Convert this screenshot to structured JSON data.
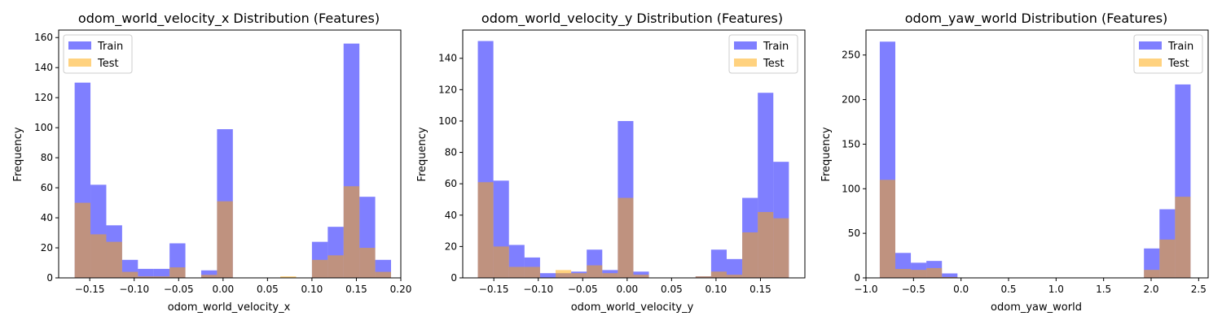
{
  "colors": {
    "train": "#0000ff",
    "test": "#ffa500",
    "alpha": 0.5
  },
  "legend": {
    "train_label": "Train",
    "test_label": "Test"
  },
  "chart_data": [
    {
      "type": "bar",
      "title": "odom_world_velocity_x Distribution (Features)",
      "xlabel": "odom_world_velocity_x",
      "ylabel": "Frequency",
      "xlim": [
        -0.185,
        0.2
      ],
      "ylim": [
        0,
        165
      ],
      "xticks": [
        -0.15,
        -0.1,
        -0.05,
        0.0,
        0.05,
        0.1,
        0.15,
        0.2
      ],
      "xtick_labels": [
        "−0.15",
        "−0.10",
        "−0.05",
        "0.00",
        "0.05",
        "0.10",
        "0.15",
        "0.20"
      ],
      "yticks": [
        0,
        20,
        40,
        60,
        80,
        100,
        120,
        140,
        160
      ],
      "legend_position": "top-left",
      "bin_edges": [
        -0.167,
        -0.1492,
        -0.1314,
        -0.1136,
        -0.0958,
        -0.078,
        -0.0602,
        -0.0424,
        -0.0246,
        -0.0068,
        0.011,
        0.0288,
        0.0466,
        0.0644,
        0.0822,
        0.1,
        0.1178,
        0.1356,
        0.1534,
        0.1712,
        0.189
      ],
      "series": [
        {
          "name": "Train",
          "values": [
            130,
            62,
            35,
            12,
            6,
            6,
            23,
            0,
            5,
            99,
            0,
            0,
            0,
            0,
            0,
            24,
            34,
            156,
            54,
            12
          ]
        },
        {
          "name": "Test",
          "values": [
            50,
            29,
            24,
            4,
            1,
            1,
            7,
            0,
            2,
            51,
            0,
            0,
            0,
            1,
            0,
            12,
            15,
            61,
            20,
            4
          ]
        }
      ]
    },
    {
      "type": "bar",
      "title": "odom_world_velocity_y Distribution (Features)",
      "xlabel": "odom_world_velocity_y",
      "ylabel": "Frequency",
      "xlim": [
        -0.185,
        0.2
      ],
      "ylim": [
        0,
        158
      ],
      "xticks": [
        -0.15,
        -0.1,
        -0.05,
        0.0,
        0.05,
        0.1,
        0.15
      ],
      "xtick_labels": [
        "−0.15",
        "−0.10",
        "−0.05",
        "0.00",
        "0.05",
        "0.10",
        "0.15"
      ],
      "yticks": [
        0,
        20,
        40,
        60,
        80,
        100,
        120,
        140
      ],
      "legend_position": "top-right",
      "bin_edges": [
        -0.168,
        -0.1505,
        -0.133,
        -0.1155,
        -0.098,
        -0.0805,
        -0.063,
        -0.0455,
        -0.028,
        -0.0105,
        0.007,
        0.0245,
        0.042,
        0.0595,
        0.077,
        0.0945,
        0.112,
        0.1295,
        0.147,
        0.1645,
        0.182
      ],
      "series": [
        {
          "name": "Train",
          "values": [
            151,
            62,
            21,
            13,
            3,
            3,
            4,
            18,
            5,
            100,
            4,
            0,
            0,
            0,
            1,
            18,
            12,
            51,
            118,
            74
          ]
        },
        {
          "name": "Test",
          "values": [
            61,
            20,
            7,
            7,
            0,
            5,
            3,
            8,
            3,
            51,
            2,
            0,
            0,
            0,
            1,
            4,
            2,
            29,
            42,
            38
          ]
        }
      ]
    },
    {
      "type": "bar",
      "title": "odom_yaw_world Distribution (Features)",
      "xlabel": "odom_yaw_world",
      "ylabel": "Frequency",
      "xlim": [
        -1.0,
        2.6
      ],
      "ylim": [
        0,
        278
      ],
      "xticks": [
        -1.0,
        -0.5,
        0.0,
        0.5,
        1.0,
        1.5,
        2.0,
        2.5
      ],
      "xtick_labels": [
        "−1.0",
        "−0.5",
        "0.0",
        "0.5",
        "1.0",
        "1.5",
        "2.0",
        "2.5"
      ],
      "yticks": [
        0,
        50,
        100,
        150,
        200,
        250
      ],
      "legend_position": "top-right",
      "bin_edges": [
        -0.855,
        -0.6915,
        -0.528,
        -0.3645,
        -0.201,
        -0.0375,
        0.126,
        0.2895,
        0.453,
        0.6165,
        0.78,
        0.9435,
        1.107,
        1.2705,
        1.434,
        1.5975,
        1.761,
        1.9245,
        2.088,
        2.2515,
        2.415
      ],
      "series": [
        {
          "name": "Train",
          "values": [
            265,
            28,
            17,
            19,
            5,
            0,
            0,
            0,
            0,
            0,
            0,
            0,
            0,
            0,
            0,
            0,
            0,
            33,
            77,
            217
          ]
        },
        {
          "name": "Test",
          "values": [
            110,
            10,
            9,
            11,
            1,
            0,
            0,
            0,
            0,
            0,
            0,
            0,
            0,
            0,
            0,
            0,
            0,
            9,
            43,
            91
          ]
        }
      ]
    }
  ]
}
